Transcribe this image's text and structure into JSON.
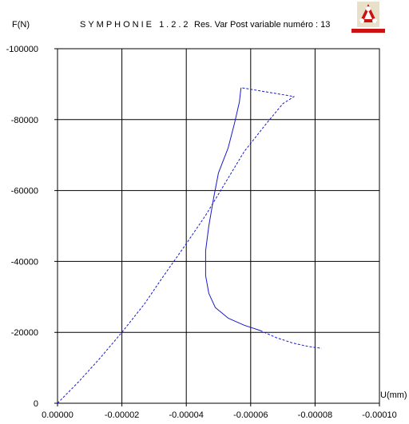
{
  "header": {
    "ylabel": "F(N)",
    "app_title": "SYMPHONIE 1.2.2",
    "subtitle": "Res. Var Post variable numéro :   13",
    "logo_text": "SYMPHONIE"
  },
  "colors": {
    "curve": "#1a1acc",
    "grid": "#000000",
    "logo_red": "#cc1111"
  },
  "chart_data": {
    "type": "line",
    "title": "",
    "xlabel": "U(mm)",
    "ylabel": "F(N)",
    "xlim": [
      0,
      -0.0001
    ],
    "ylim": [
      0,
      -100000
    ],
    "grid": true,
    "x_ticks": [
      0,
      -2e-05,
      -4e-05,
      -6e-05,
      -8e-05,
      -0.0001
    ],
    "x_tick_labels": [
      "0.00000",
      "-0.00002",
      "-0.00004",
      "-0.00006",
      "-0.00008",
      "-0.00010"
    ],
    "y_ticks": [
      0,
      -20000,
      -40000,
      -60000,
      -80000,
      -100000
    ],
    "y_tick_labels": [
      "0",
      "-20000",
      "-40000",
      "-60000",
      "-80000",
      "-100000"
    ],
    "series": [
      {
        "style": "dashed",
        "points": [
          [
            0,
            0
          ],
          [
            -6.5e-06,
            -6000
          ],
          [
            -1.3e-05,
            -12500
          ],
          [
            -2e-05,
            -20000
          ],
          [
            -2.7e-05,
            -28000
          ],
          [
            -3.3e-05,
            -36000
          ],
          [
            -4e-05,
            -45000
          ],
          [
            -4.6e-05,
            -53000
          ],
          [
            -5.2e-05,
            -62000
          ],
          [
            -5.8e-05,
            -71000
          ],
          [
            -6.5e-05,
            -79000
          ],
          [
            -7e-05,
            -84500
          ],
          [
            -7.35e-05,
            -86500
          ],
          [
            -5.7e-05,
            -89000
          ]
        ]
      },
      {
        "style": "solid",
        "points": [
          [
            -5.7e-05,
            -89000
          ],
          [
            -5.65e-05,
            -85000
          ],
          [
            -5.5e-05,
            -79000
          ],
          [
            -5.3e-05,
            -72000
          ],
          [
            -5e-05,
            -65000
          ],
          [
            -4.85e-05,
            -58000
          ],
          [
            -4.7e-05,
            -50000
          ],
          [
            -4.6e-05,
            -43000
          ],
          [
            -4.6e-05,
            -36000
          ],
          [
            -4.7e-05,
            -31000
          ],
          [
            -4.9e-05,
            -27000
          ],
          [
            -5.3e-05,
            -24000
          ],
          [
            -5.8e-05,
            -22000
          ],
          [
            -6.3e-05,
            -20500
          ]
        ]
      },
      {
        "style": "dashed",
        "points": [
          [
            -6.3e-05,
            -20500
          ],
          [
            -6.8e-05,
            -18500
          ],
          [
            -7.3e-05,
            -17000
          ],
          [
            -7.8e-05,
            -16000
          ],
          [
            -8.2e-05,
            -15500
          ]
        ]
      }
    ]
  }
}
